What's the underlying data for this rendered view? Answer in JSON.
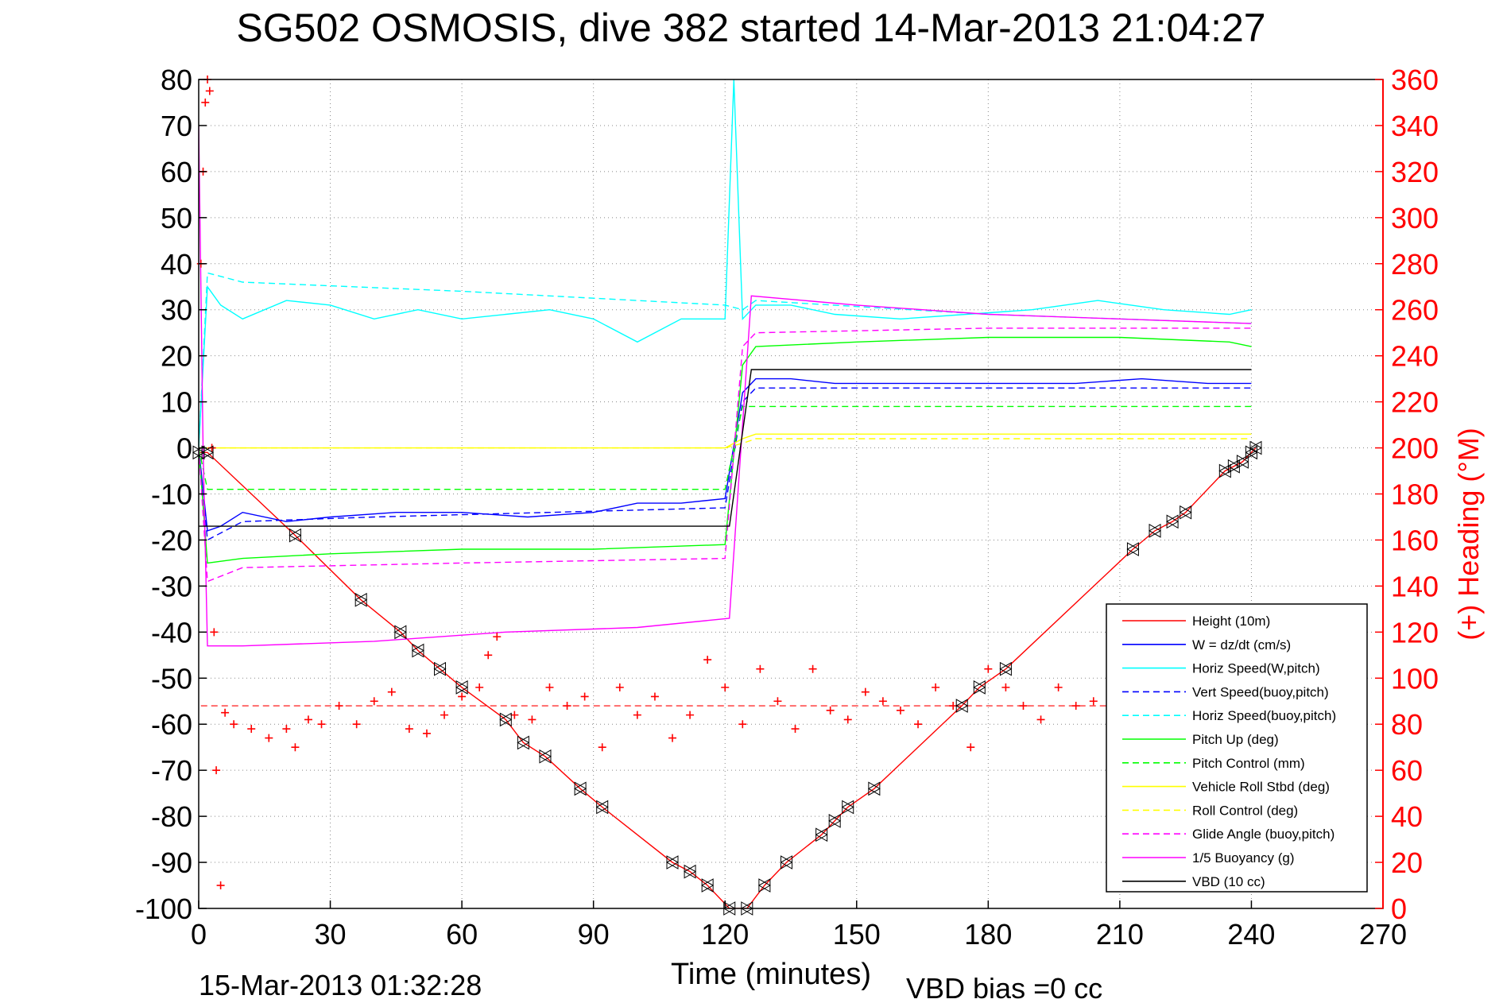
{
  "chart_data": {
    "type": "line",
    "title": "SG502 OSMOSIS, dive 382 started 14-Mar-2013 21:04:27",
    "xlabel": "Time (minutes)",
    "ylabel": "",
    "y2label": "(+) Heading (°M)",
    "footer_left": "15-Mar-2013 01:32:28",
    "footer_right": "VBD bias =0 cc",
    "xlim": [
      0,
      270
    ],
    "ylim": [
      -100,
      80
    ],
    "y2lim": [
      0,
      360
    ],
    "xticks": [
      0,
      30,
      60,
      90,
      120,
      150,
      180,
      210,
      240,
      270
    ],
    "yticks": [
      -100,
      -90,
      -80,
      -70,
      -60,
      -50,
      -40,
      -30,
      -20,
      -10,
      0,
      10,
      20,
      30,
      40,
      50,
      60,
      70,
      80
    ],
    "y2ticks": [
      0,
      20,
      40,
      60,
      80,
      100,
      120,
      140,
      160,
      180,
      200,
      220,
      240,
      260,
      280,
      300,
      320,
      340,
      360
    ],
    "grid": true,
    "legend_position": "bottom-right",
    "colors": {
      "height": "#ff0000",
      "w": "#0000ff",
      "horiz_speed": "#00ffff",
      "pitch": "#00ff00",
      "roll": "#ffff00",
      "glide": "#ff00ff",
      "vbd": "#000000",
      "heading_axis": "#ff0000"
    },
    "series": [
      {
        "name": "Height (10m)",
        "style": "solid",
        "color": "#ff0000",
        "x": [
          0,
          2,
          22,
          37,
          46,
          50,
          55,
          60,
          70,
          74,
          79,
          87,
          92,
          108,
          112,
          116,
          121,
          125,
          129,
          134,
          142,
          145,
          148,
          154,
          174,
          178,
          184,
          213,
          218,
          222,
          225,
          234,
          236,
          238,
          240,
          241
        ],
        "y": [
          -1,
          -1,
          -19,
          -33,
          -40,
          -44,
          -48,
          -52,
          -59,
          -64,
          -67,
          -74,
          -78,
          -90,
          -92,
          -95,
          -100,
          -100,
          -95,
          -90,
          -84,
          -81,
          -78,
          -74,
          -56,
          -52,
          -48,
          -22,
          -18,
          -16,
          -14,
          -5,
          -4,
          -3,
          -1,
          0
        ]
      },
      {
        "name": "W = dz/dt (cm/s)",
        "style": "solid",
        "color": "#0000ff",
        "x": [
          0,
          2,
          5,
          10,
          20,
          30,
          45,
          60,
          75,
          90,
          100,
          110,
          120,
          124,
          127,
          135,
          145,
          155,
          170,
          185,
          200,
          215,
          230,
          240
        ],
        "y": [
          0,
          -18,
          -17,
          -14,
          -16,
          -15,
          -14,
          -14,
          -15,
          -14,
          -12,
          -12,
          -11,
          12,
          15,
          15,
          14,
          14,
          14,
          14,
          14,
          15,
          14,
          14
        ]
      },
      {
        "name": "Horiz Speed(W,pitch)",
        "style": "solid",
        "color": "#00ffff",
        "x": [
          0,
          2,
          5,
          10,
          20,
          30,
          40,
          50,
          60,
          70,
          80,
          90,
          100,
          110,
          120,
          122,
          124,
          127,
          135,
          145,
          160,
          175,
          190,
          205,
          220,
          235,
          240
        ],
        "y": [
          0,
          35,
          31,
          28,
          32,
          31,
          28,
          30,
          28,
          29,
          30,
          28,
          23,
          28,
          28,
          80,
          28,
          31,
          31,
          29,
          28,
          29,
          30,
          32,
          30,
          29,
          30
        ]
      },
      {
        "name": "Vert Speed(buoy,pitch)",
        "style": "dashed",
        "color": "#0000ff",
        "x": [
          0,
          2,
          10,
          40,
          80,
          120,
          124,
          127,
          160,
          200,
          240
        ],
        "y": [
          0,
          -20,
          -16,
          -15,
          -14,
          -13,
          10,
          13,
          13,
          13,
          13
        ]
      },
      {
        "name": "Horiz Speed(buoy,pitch)",
        "style": "dashed",
        "color": "#00ffff",
        "x": [
          0,
          2,
          10,
          60,
          120,
          124,
          127,
          180,
          240
        ],
        "y": [
          0,
          38,
          36,
          34,
          31,
          30,
          32,
          29,
          27
        ]
      },
      {
        "name": "Pitch Up (deg)",
        "style": "solid",
        "color": "#00ff00",
        "x": [
          0,
          2,
          10,
          30,
          60,
          90,
          120,
          124,
          127,
          150,
          180,
          210,
          235,
          240
        ],
        "y": [
          0,
          -25,
          -24,
          -23,
          -22,
          -22,
          -21,
          18,
          22,
          23,
          24,
          24,
          23,
          22
        ]
      },
      {
        "name": "Pitch Control (mm)",
        "style": "dashed",
        "color": "#00ff00",
        "x": [
          0,
          2,
          120,
          124,
          127,
          240
        ],
        "y": [
          0,
          -9,
          -9,
          9,
          9,
          9
        ]
      },
      {
        "name": "Vehicle Roll Stbd (deg)",
        "style": "solid",
        "color": "#ffff00",
        "x": [
          0,
          2,
          10,
          30,
          60,
          90,
          120,
          124,
          127,
          150,
          180,
          210,
          240
        ],
        "y": [
          0,
          0,
          0,
          0,
          0,
          0,
          0,
          2,
          3,
          3,
          3,
          3,
          3
        ]
      },
      {
        "name": "Roll Control (deg)",
        "style": "dashed",
        "color": "#ffff00",
        "x": [
          0,
          2,
          120,
          124,
          127,
          240
        ],
        "y": [
          0,
          0,
          0,
          1,
          2,
          2
        ]
      },
      {
        "name": "Glide Angle (buoy,pitch)",
        "style": "dashed",
        "color": "#ff00ff",
        "x": [
          0,
          2,
          10,
          60,
          120,
          124,
          127,
          180,
          240
        ],
        "y": [
          0,
          -29,
          -26,
          -25,
          -24,
          22,
          25,
          26,
          26
        ]
      },
      {
        "name": "1/5 Buoyancy (g)",
        "style": "solid",
        "color": "#ff00ff",
        "x": [
          0,
          1,
          2,
          10,
          40,
          70,
          100,
          121,
          126,
          150,
          180,
          210,
          240
        ],
        "y": [
          70,
          0,
          -43,
          -43,
          -42,
          -40,
          -39,
          -37,
          33,
          31,
          29,
          28,
          27
        ]
      },
      {
        "name": "VBD (10 cc)",
        "style": "solid",
        "color": "#000000",
        "x": [
          0,
          2,
          121,
          126,
          240
        ],
        "y": [
          -17,
          -17,
          -17,
          17,
          17
        ]
      }
    ],
    "heading_series": {
      "name": "(+) Heading",
      "marker": "+",
      "color": "#ff0000",
      "x": [
        0.5,
        1,
        1.5,
        2,
        2.5,
        3,
        3.5,
        4,
        5,
        6,
        8,
        12,
        16,
        20,
        22,
        25,
        28,
        32,
        36,
        40,
        44,
        48,
        52,
        56,
        60,
        64,
        66,
        68,
        72,
        76,
        80,
        84,
        88,
        92,
        96,
        100,
        104,
        108,
        112,
        116,
        120,
        124,
        128,
        132,
        136,
        140,
        144,
        148,
        152,
        156,
        160,
        164,
        168,
        172,
        176,
        180,
        184,
        188,
        192,
        196,
        200,
        204,
        208
      ],
      "y": [
        280,
        320,
        350,
        360,
        355,
        200,
        120,
        60,
        10,
        85,
        80,
        78,
        74,
        78,
        70,
        82,
        80,
        88,
        80,
        90,
        94,
        78,
        76,
        84,
        92,
        96,
        110,
        118,
        84,
        82,
        96,
        88,
        92,
        70,
        96,
        84,
        92,
        74,
        84,
        108,
        96,
        80,
        104,
        90,
        78,
        104,
        86,
        82,
        94,
        90,
        86,
        80,
        96,
        88,
        70,
        104,
        96,
        88,
        82,
        96,
        88,
        90,
        80
      ]
    },
    "heading_mean": 88,
    "legend": [
      "Height (10m)",
      "W = dz/dt (cm/s)",
      "Horiz Speed(W,pitch)",
      "Vert Speed(buoy,pitch)",
      "Horiz Speed(buoy,pitch)",
      "Pitch Up (deg)",
      "Pitch Control (mm)",
      "Vehicle Roll Stbd (deg)",
      "Roll Control (deg)",
      "Glide Angle (buoy,pitch)",
      "1/5 Buoyancy (g)",
      "VBD (10 cc)"
    ]
  }
}
